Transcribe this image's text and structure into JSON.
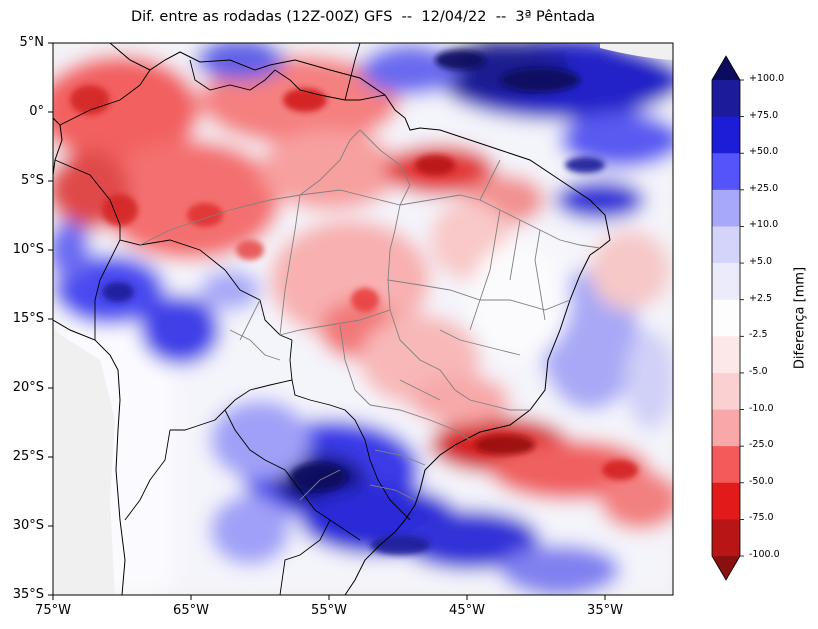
{
  "title": "Dif. entre as rodadas (12Z-00Z) GFS  --  12/04/22  --  3ª Pêntada",
  "map": {
    "lat_labels": [
      "5°N",
      "0°",
      "5°S",
      "10°S",
      "15°S",
      "20°S",
      "25°S",
      "30°S",
      "35°S"
    ],
    "lon_labels": [
      "75°W",
      "65°W",
      "55°W",
      "45°W",
      "35°W"
    ],
    "extent": {
      "lon_min": -75,
      "lon_max": -30,
      "lat_min": -35,
      "lat_max": 5
    },
    "colors": {
      "land_background": "#f0f0f0",
      "coast": "#000000",
      "state_borders": "#808080"
    }
  },
  "colorbar": {
    "title": "Diferença [mm]",
    "levels": [
      "+100.0",
      "+75.0",
      "+50.0",
      "+25.0",
      "+10.0",
      "+5.0",
      "+2.5",
      "-2.5",
      "-5.0",
      "-10.0",
      "-25.0",
      "-50.0",
      "-75.0",
      "-100.0"
    ],
    "colors": [
      "#0c0b5e",
      "#1c1c9a",
      "#1d1dd8",
      "#5454fa",
      "#a8a8f8",
      "#d4d4fa",
      "#ebebfc",
      "#fdfdfd",
      "#fce8e8",
      "#fad0d0",
      "#f8a8a8",
      "#f55a5a",
      "#e21a1a",
      "#b81616",
      "#8a0f0f"
    ]
  }
}
